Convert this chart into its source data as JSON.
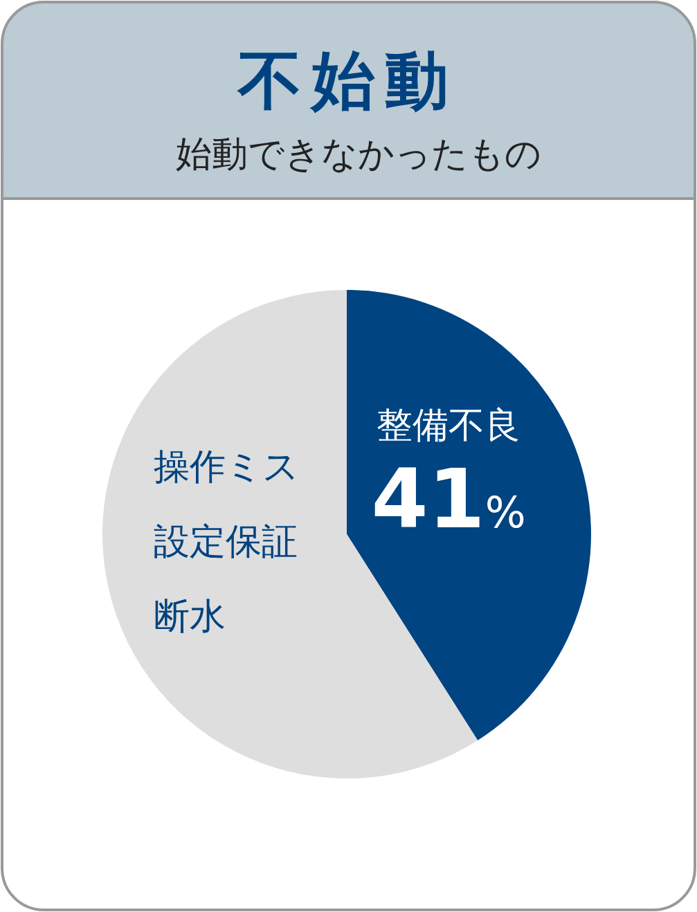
{
  "chart_data": {
    "type": "pie",
    "title": "不始動",
    "subtitle": "始動できなかったもの",
    "categories": [
      "整備不良",
      "操作ミス設定保証断水"
    ],
    "values": [
      41,
      59
    ],
    "colors": [
      "#004482",
      "#dedede"
    ],
    "value_labels": [
      "41%",
      null
    ]
  }
}
